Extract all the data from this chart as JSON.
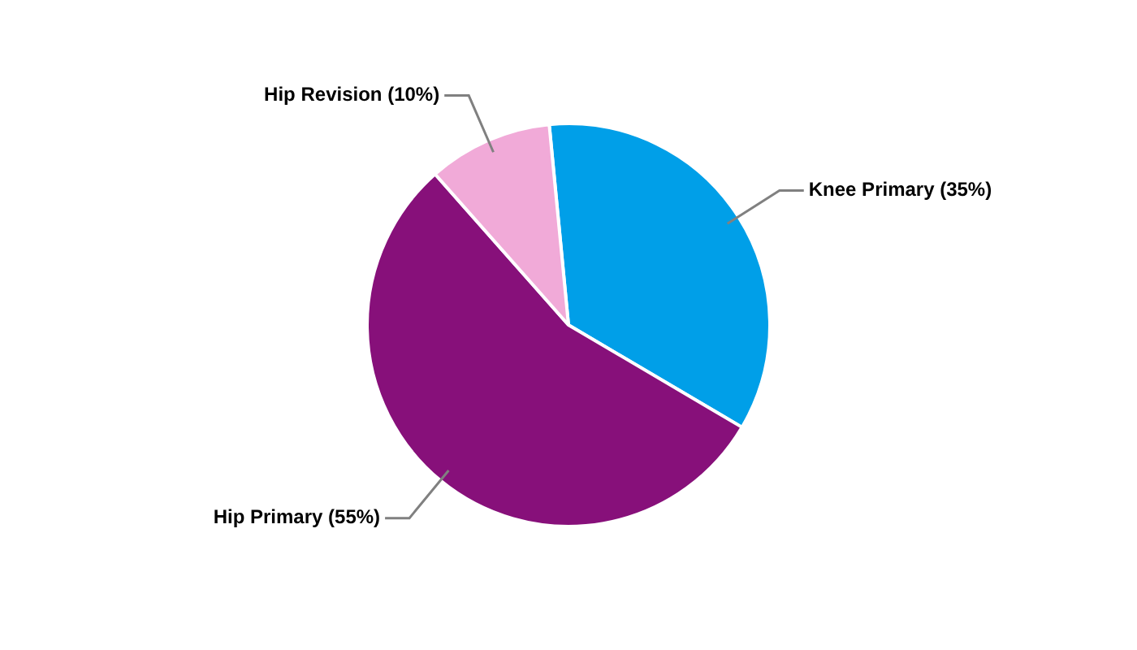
{
  "chart_data": {
    "type": "pie",
    "categories": [
      "Knee Primary (35%)",
      "Hip Primary (55%)",
      "Hip Revision (10%)"
    ],
    "values": [
      35,
      55,
      10
    ],
    "colors": [
      "#009fe8",
      "#87107a",
      "#f1aad8"
    ],
    "legend": false
  }
}
